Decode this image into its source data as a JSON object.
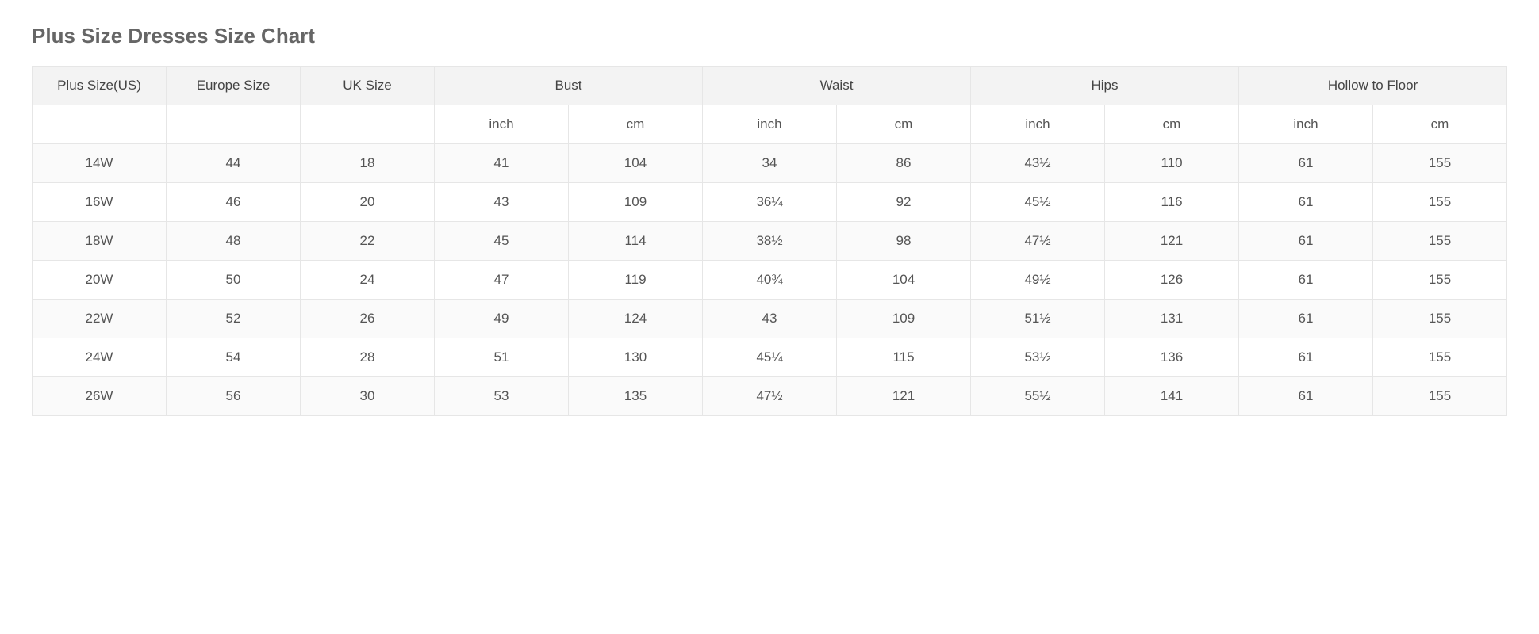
{
  "title": "Plus Size Dresses Size Chart",
  "table": {
    "type": "table",
    "background_color": "#ffffff",
    "header_bg": "#f3f3f3",
    "stripe_bg": "#fafafa",
    "border_color": "#e6e6e6",
    "text_color": "#555555",
    "title_color": "#666666",
    "title_fontsize": 26,
    "cell_fontsize": 17,
    "columns_top": [
      {
        "label": "Plus Size(US)",
        "span": 1
      },
      {
        "label": "Europe Size",
        "span": 1
      },
      {
        "label": "UK Size",
        "span": 1
      },
      {
        "label": "Bust",
        "span": 2
      },
      {
        "label": "Waist",
        "span": 2
      },
      {
        "label": "Hips",
        "span": 2
      },
      {
        "label": "Hollow to Floor",
        "span": 2
      }
    ],
    "columns_sub": [
      "",
      "",
      "",
      "inch",
      "cm",
      "inch",
      "cm",
      "inch",
      "cm",
      "inch",
      "cm"
    ],
    "rows": [
      [
        "14W",
        "44",
        "18",
        "41",
        "104",
        "34",
        "86",
        "43½",
        "110",
        "61",
        "155"
      ],
      [
        "16W",
        "46",
        "20",
        "43",
        "109",
        "36¼",
        "92",
        "45½",
        "116",
        "61",
        "155"
      ],
      [
        "18W",
        "48",
        "22",
        "45",
        "114",
        "38½",
        "98",
        "47½",
        "121",
        "61",
        "155"
      ],
      [
        "20W",
        "50",
        "24",
        "47",
        "119",
        "40¾",
        "104",
        "49½",
        "126",
        "61",
        "155"
      ],
      [
        "22W",
        "52",
        "26",
        "49",
        "124",
        "43",
        "109",
        "51½",
        "131",
        "61",
        "155"
      ],
      [
        "24W",
        "54",
        "28",
        "51",
        "130",
        "45¼",
        "115",
        "53½",
        "136",
        "61",
        "155"
      ],
      [
        "26W",
        "56",
        "30",
        "53",
        "135",
        "47½",
        "121",
        "55½",
        "141",
        "61",
        "155"
      ]
    ]
  }
}
